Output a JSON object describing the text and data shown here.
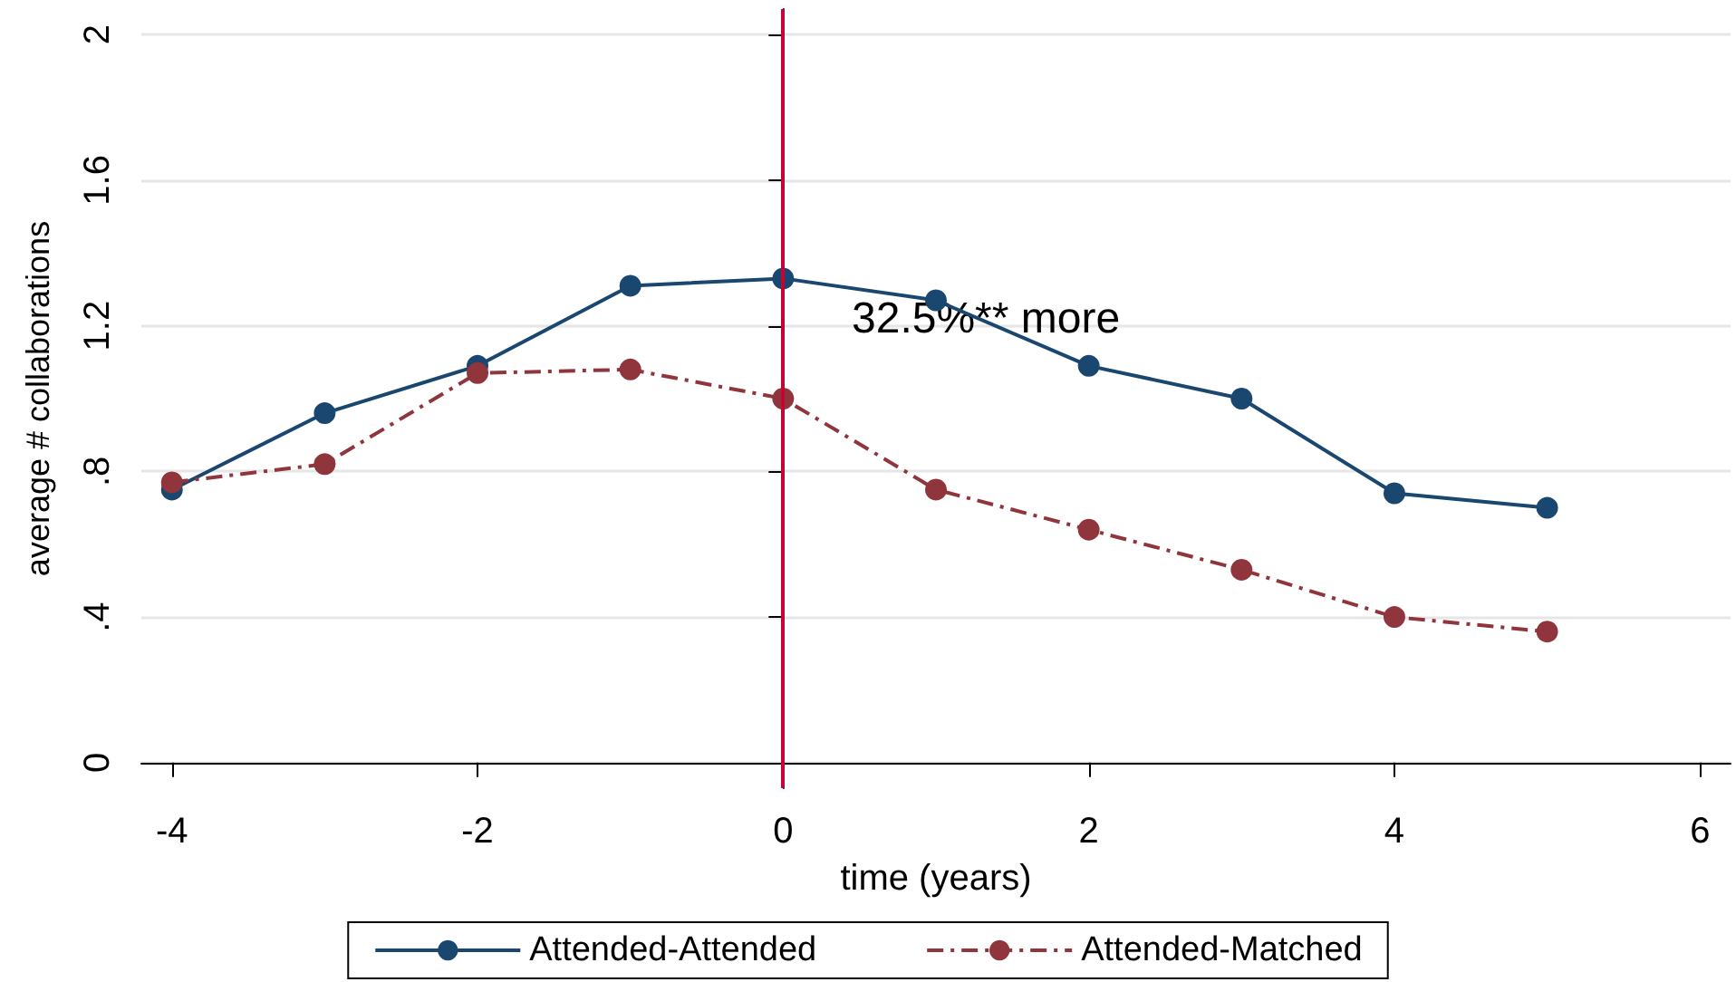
{
  "chart_data": {
    "type": "line",
    "xlabel": "time (years)",
    "ylabel": "average # collaborations",
    "x": [
      -4,
      -3,
      -2,
      -1,
      0,
      1,
      2,
      3,
      4,
      5
    ],
    "series": [
      {
        "name": "Attended-Attended",
        "color": "#1a476f",
        "line_style": "solid",
        "values": [
          0.75,
          0.96,
          1.09,
          1.31,
          1.33,
          1.27,
          1.09,
          1.0,
          0.74,
          0.7
        ]
      },
      {
        "name": "Attended-Matched",
        "color": "#90353b",
        "line_style": "dashed",
        "values": [
          0.77,
          0.82,
          1.07,
          1.08,
          1.0,
          0.75,
          0.64,
          0.53,
          0.4,
          0.36
        ]
      }
    ],
    "xlim": [
      -4.2,
      6.2
    ],
    "xticks": [
      -4,
      -2,
      0,
      2,
      4,
      6
    ],
    "ylim": [
      -0.07,
      2.07
    ],
    "yticks": [
      0,
      {
        "value": 0.4,
        "label": ".4"
      },
      {
        "value": 0.8,
        "label": ".8"
      },
      1.2,
      1.6,
      2
    ],
    "ref_lines": [
      {
        "axis": "x",
        "value": 0,
        "color": "#c10534"
      }
    ],
    "annotations": [
      "32.5%** more"
    ],
    "grid": "y",
    "legend": "bottom",
    "marker": "circle"
  }
}
